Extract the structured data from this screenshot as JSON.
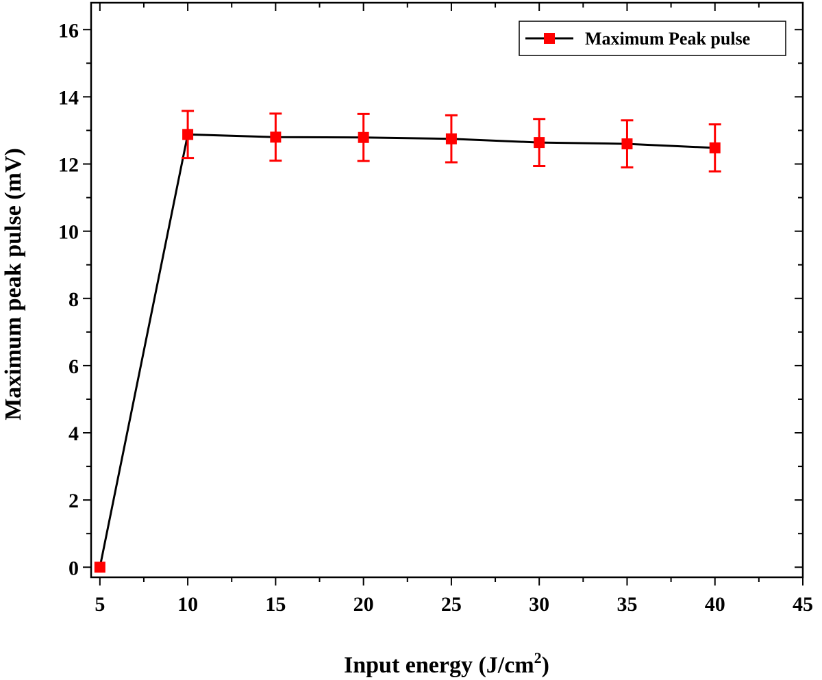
{
  "chart_data": {
    "type": "line",
    "title": "",
    "xlabel": "Input energy (J/cm",
    "xlabel_sup": "2",
    "xlabel_end": ")",
    "ylabel": "Maximum peak pulse (mV)",
    "xlim": [
      4.5,
      45
    ],
    "ylim": [
      -0.3,
      16.8
    ],
    "xticks": [
      5,
      10,
      15,
      20,
      25,
      30,
      35,
      40,
      45
    ],
    "yticks": [
      0,
      2,
      4,
      6,
      8,
      10,
      12,
      14,
      16
    ],
    "legend_position": "top-right",
    "series": [
      {
        "name": "Maximum Peak pulse",
        "line_color": "#000000",
        "marker_color": "#ff0000",
        "marker": "square",
        "x": [
          5,
          10,
          15,
          20,
          25,
          30,
          35,
          40
        ],
        "y": [
          0,
          12.88,
          12.8,
          12.79,
          12.75,
          12.64,
          12.6,
          12.48
        ],
        "error": [
          null,
          0.7,
          0.7,
          0.7,
          0.7,
          0.7,
          0.7,
          0.7
        ]
      }
    ]
  }
}
